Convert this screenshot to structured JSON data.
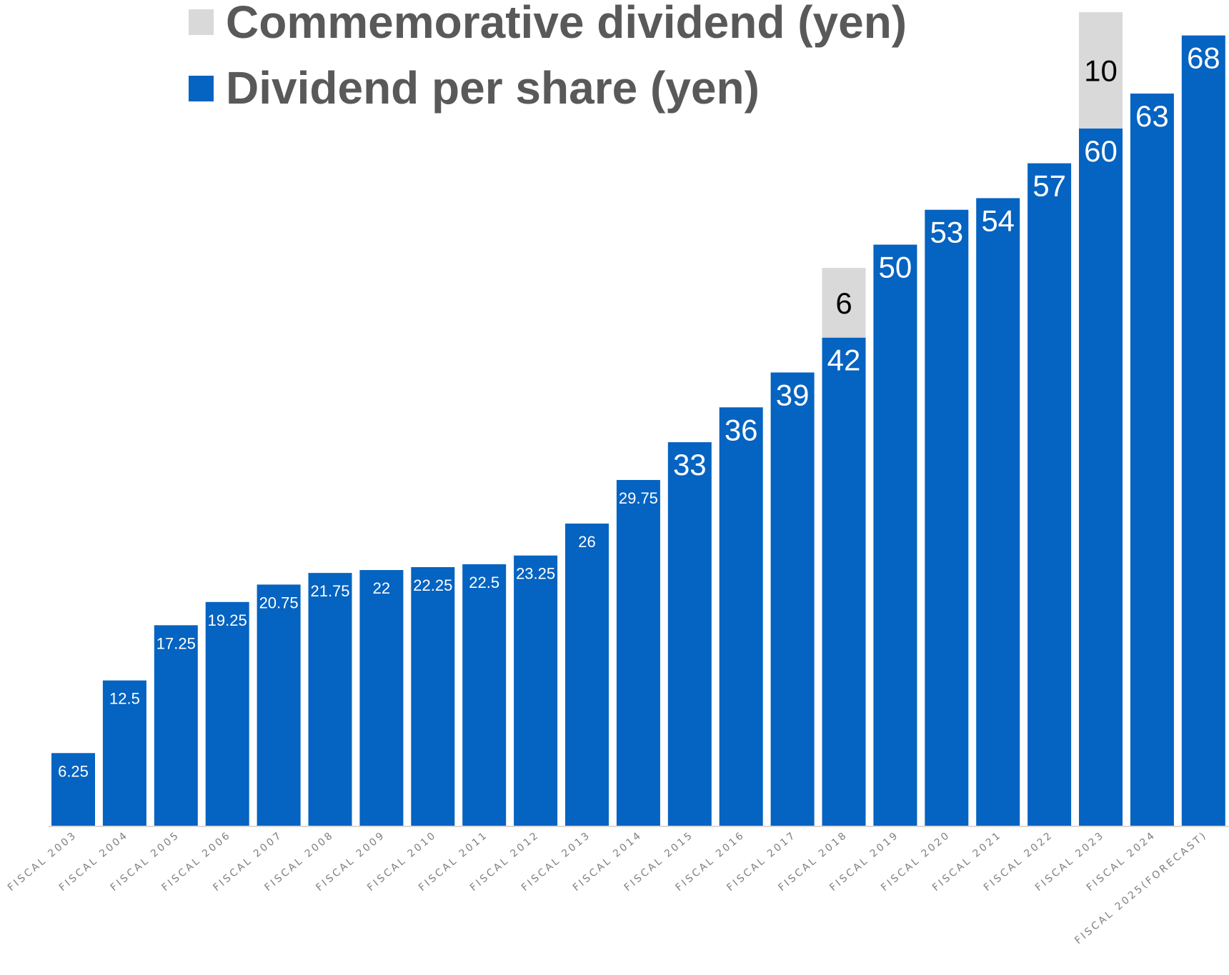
{
  "chart_data": {
    "type": "bar",
    "stacked": true,
    "categories": [
      "FISCAL 2003",
      "FISCAL 2004",
      "FISCAL 2005",
      "FISCAL 2006",
      "FISCAL 2007",
      "FISCAL 2008",
      "FISCAL 2009",
      "FISCAL 2010",
      "FISCAL 2011",
      "FISCAL 2012",
      "FISCAL 2013",
      "FISCAL 2014",
      "FISCAL 2015",
      "FISCAL 2016",
      "FISCAL 2017",
      "FISCAL 2018",
      "FISCAL 2019",
      "FISCAL 2020",
      "FISCAL 2021",
      "FISCAL 2022",
      "FISCAL 2023",
      "FISCAL 2024",
      "FISCAL 2025(FORECAST)"
    ],
    "series": [
      {
        "name": "Dividend per share (yen)",
        "color": "#0563C1",
        "values": [
          6.25,
          12.5,
          17.25,
          19.25,
          20.75,
          21.75,
          22,
          22.25,
          22.5,
          23.25,
          26,
          29.75,
          33,
          36,
          39,
          42,
          50,
          53,
          54,
          57,
          60,
          63,
          68
        ],
        "labels": [
          "6.25",
          "12.5",
          "17.25",
          "19.25",
          "20.75",
          "21.75",
          "22",
          "22.25",
          "22.5",
          "23.25",
          "26",
          "29.75",
          "33",
          "36",
          "39",
          "42",
          "50",
          "53",
          "54",
          "57",
          "60",
          "63",
          "68"
        ]
      },
      {
        "name": "Commemorative dividend (yen)",
        "color": "#D9D9D9",
        "values": [
          null,
          null,
          null,
          null,
          null,
          null,
          null,
          null,
          null,
          null,
          null,
          null,
          null,
          null,
          null,
          6,
          null,
          null,
          null,
          null,
          10,
          null,
          null
        ],
        "labels": [
          "",
          "",
          "",
          "",
          "",
          "",
          "",
          "",
          "",
          "",
          "",
          "",
          "",
          "",
          "",
          "6",
          "",
          "",
          "",
          "",
          "10",
          "",
          ""
        ]
      }
    ],
    "title": "",
    "xlabel": "",
    "ylabel": "",
    "ylim": [
      0,
      70
    ],
    "grid": false,
    "y_axis_shown": false,
    "legend_placement": "top-center"
  }
}
